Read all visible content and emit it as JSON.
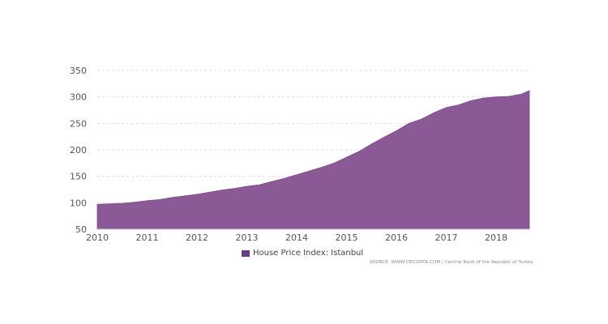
{
  "chart_data": {
    "type": "area",
    "title": "",
    "xlabel": "",
    "ylabel": "",
    "x_ticks": [
      "2010",
      "2011",
      "2012",
      "2013",
      "2014",
      "2015",
      "2016",
      "2017",
      "2018"
    ],
    "y_ticks": [
      "350",
      "300",
      "250",
      "200",
      "150",
      "100",
      "50"
    ],
    "ylim": [
      50,
      350
    ],
    "xlim": [
      "2010-01",
      "2018-09"
    ],
    "grid": true,
    "legend_position": "bottom",
    "series": [
      {
        "name": "House Price Index: Istanbul",
        "color": "#8b5996",
        "x": [
          "2010-01",
          "2010-04",
          "2010-07",
          "2010-10",
          "2011-01",
          "2011-04",
          "2011-07",
          "2011-10",
          "2012-01",
          "2012-04",
          "2012-07",
          "2012-10",
          "2013-01",
          "2013-04",
          "2013-07",
          "2013-10",
          "2014-01",
          "2014-04",
          "2014-07",
          "2014-10",
          "2015-01",
          "2015-04",
          "2015-07",
          "2015-10",
          "2016-01",
          "2016-04",
          "2016-07",
          "2016-10",
          "2017-01",
          "2017-04",
          "2017-07",
          "2017-10",
          "2018-01",
          "2018-04",
          "2018-07",
          "2018-09"
        ],
        "values": [
          97,
          98,
          99,
          101,
          104,
          106,
          110,
          113,
          116,
          120,
          124,
          127,
          131,
          134,
          140,
          146,
          153,
          160,
          167,
          175,
          186,
          197,
          211,
          224,
          236,
          250,
          258,
          270,
          280,
          285,
          293,
          298,
          300,
          301,
          305,
          312
        ]
      }
    ]
  },
  "legend": {
    "label": "House Price Index: Istanbul",
    "swatch_color": "#6a3d83"
  },
  "source": {
    "text": "SOURCE: WWW.CEICDATA.COM | Central Bank of the Republic of Turkey"
  },
  "colors": {
    "fill": "#8b5996",
    "grid": "#dddddd",
    "axis": "#cccccc"
  }
}
